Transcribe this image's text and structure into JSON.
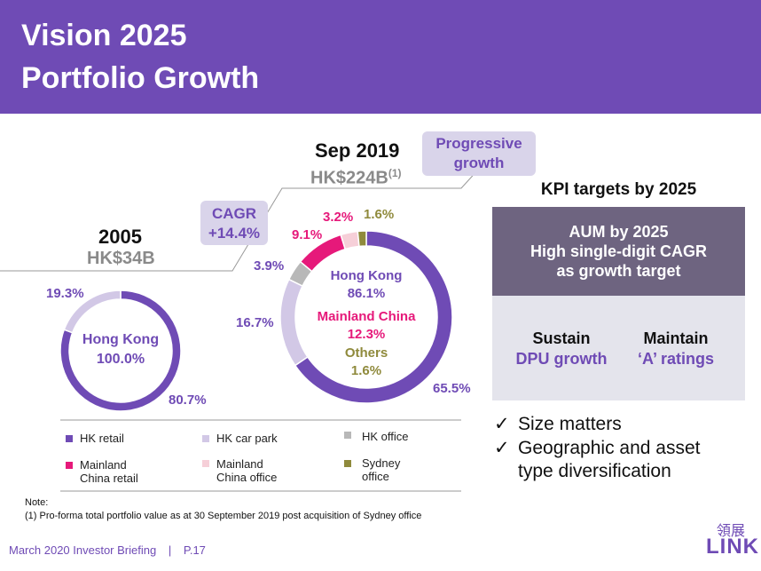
{
  "header": {
    "line1": "Vision 2025",
    "line2": "Portfolio Growth"
  },
  "colors": {
    "hk_retail": "#6f4bb5",
    "hk_car_park": "#d2c8e6",
    "hk_office": "#b8b8b8",
    "mainland_retail": "#e6197a",
    "mainland_office": "#f6cfd8",
    "sydney_office": "#8f8a3c"
  },
  "chart_data": [
    {
      "type": "pie",
      "title": "2005",
      "subtitle": "HK$34B",
      "center": {
        "label": "Hong Kong",
        "value": "100.0%"
      },
      "slices": [
        {
          "name": "HK retail",
          "value": 80.7,
          "label": "80.7%"
        },
        {
          "name": "HK car park",
          "value": 19.3,
          "label": "19.3%"
        }
      ]
    },
    {
      "type": "pie",
      "title": "Sep 2019",
      "subtitle": "HK$224B",
      "subtitle_note": "(1)",
      "center": {
        "hk_label": "Hong Kong",
        "hk_value": "86.1%",
        "mc_label": "Mainland China",
        "mc_value": "12.3%",
        "others_label": "Others",
        "others_value": "1.6%"
      },
      "slices": [
        {
          "name": "HK retail",
          "value": 65.5,
          "label": "65.5%"
        },
        {
          "name": "HK car park",
          "value": 16.7,
          "label": "16.7%"
        },
        {
          "name": "HK office",
          "value": 3.9,
          "label": "3.9%"
        },
        {
          "name": "Mainland China retail",
          "value": 9.1,
          "label": "9.1%"
        },
        {
          "name": "Mainland China office",
          "value": 3.2,
          "label": "3.2%"
        },
        {
          "name": "Sydney office",
          "value": 1.6,
          "label": "1.6%"
        }
      ]
    }
  ],
  "cagr": {
    "line1": "CAGR",
    "line2": "+14.4%"
  },
  "progressive": {
    "line1": "Progressive",
    "line2": "growth"
  },
  "legend": {
    "hk_retail": "HK retail",
    "hk_car_park": "HK car park",
    "hk_office": "HK office",
    "mainland_retail_1": "Mainland",
    "mainland_retail_2": "China retail",
    "mainland_office_1": "Mainland",
    "mainland_office_2": "China office",
    "sydney_1": "Sydney",
    "sydney_2": "office"
  },
  "kpi": {
    "title": "KPI targets by 2025",
    "aum_1": "AUM by 2025",
    "aum_2": "High single-digit CAGR",
    "aum_3": "as growth target",
    "sustain": "Sustain",
    "dpu": "DPU growth",
    "maintain": "Maintain",
    "ratings": "‘A’ ratings"
  },
  "checks": {
    "c1": "Size matters",
    "c2_1": "Geographic and asset",
    "c2_2": "type diversification",
    "mark": "✓"
  },
  "note": {
    "title": "Note:",
    "text": "(1)  Pro-forma total portfolio value as at 30 September 2019 post acquisition of Sydney office"
  },
  "footer": {
    "briefing": "March 2020  Investor Briefing",
    "sep": "|",
    "page": "P.17"
  },
  "logo": {
    "cn": "領展",
    "en": "LINK"
  }
}
